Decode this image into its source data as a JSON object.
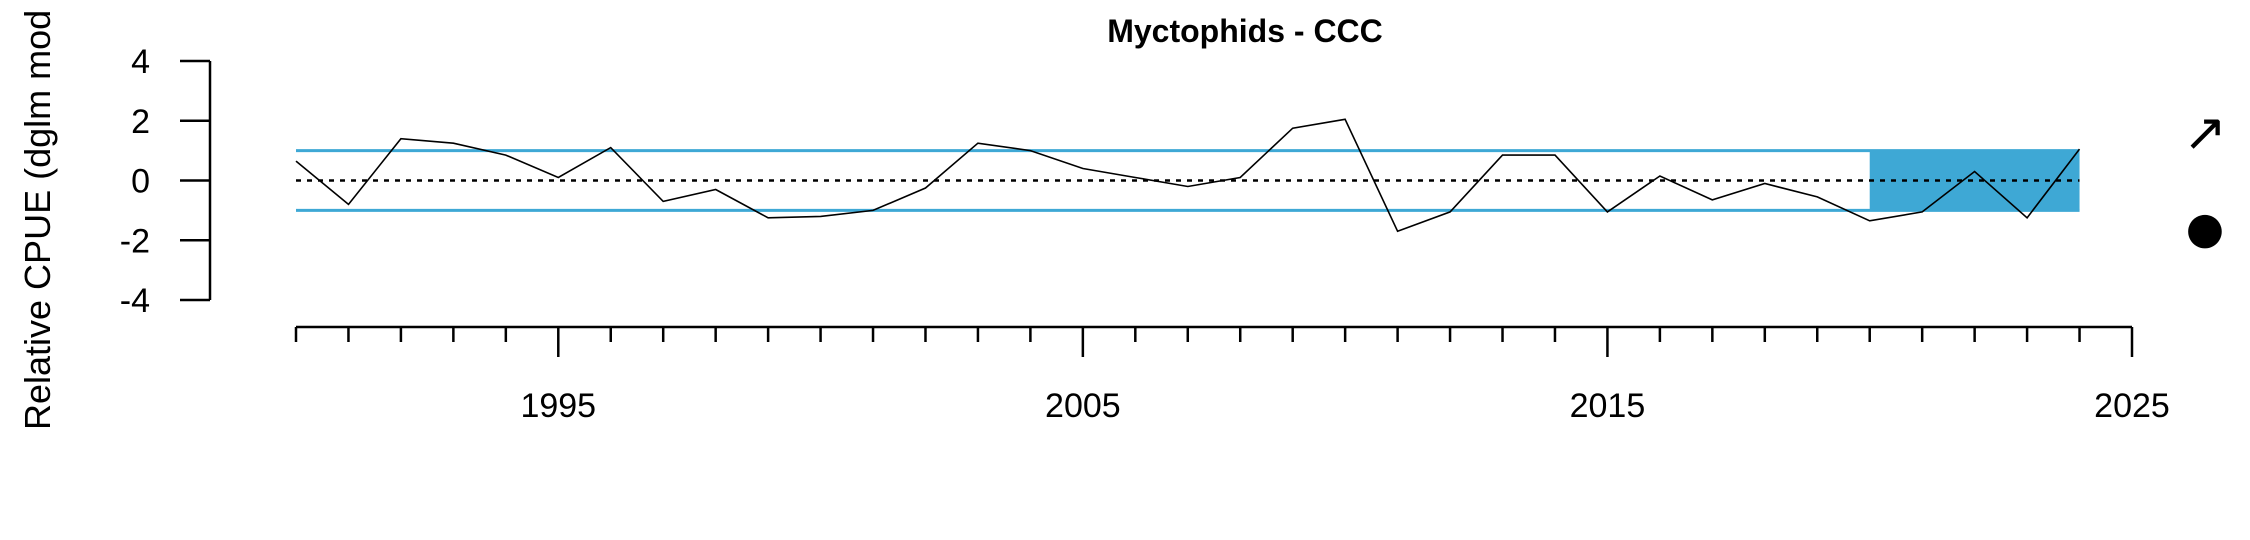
{
  "chart_data": {
    "type": "line",
    "title": "Myctophids - CCC",
    "ylabel": "Relative CPUE (dglm mod",
    "xlabel": "",
    "xlim": [
      1990,
      2025
    ],
    "ylim": [
      -4,
      4
    ],
    "x_ticks": [
      1995,
      2005,
      2015,
      2025
    ],
    "y_ticks": [
      4,
      2,
      0,
      -2,
      -4
    ],
    "reference_line": 0,
    "band": {
      "lower": -1,
      "upper": 1,
      "color": "#3ea8d5"
    },
    "highlight": {
      "x_start": 2020,
      "x_end": 2024,
      "lower": -1,
      "upper": 1,
      "color": "#3ea8d5"
    },
    "trend_symbol": "↗",
    "status_symbol": "●",
    "series": [
      {
        "x": [
          1990,
          1991,
          1992,
          1993,
          1994,
          1995,
          1996,
          1997,
          1998,
          1999,
          2000,
          2001,
          2002,
          2003,
          2004,
          2005,
          2006,
          2007,
          2008,
          2009,
          2010,
          2011,
          2012,
          2013,
          2014,
          2015,
          2016,
          2017,
          2018,
          2019,
          2020,
          2021,
          2022,
          2023,
          2024
        ],
        "values": [
          0.65,
          -0.8,
          1.4,
          1.25,
          0.85,
          0.1,
          1.1,
          -0.7,
          -0.3,
          -1.25,
          -1.2,
          -1.0,
          -0.25,
          1.25,
          1.0,
          0.4,
          0.1,
          -0.2,
          0.1,
          1.75,
          2.05,
          -1.7,
          -1.05,
          0.85,
          0.85,
          -1.05,
          0.15,
          -0.65,
          -0.1,
          -0.55,
          -1.35,
          -1.05,
          0.3,
          -1.25,
          1.05
        ],
        "color": "#000000"
      }
    ]
  }
}
